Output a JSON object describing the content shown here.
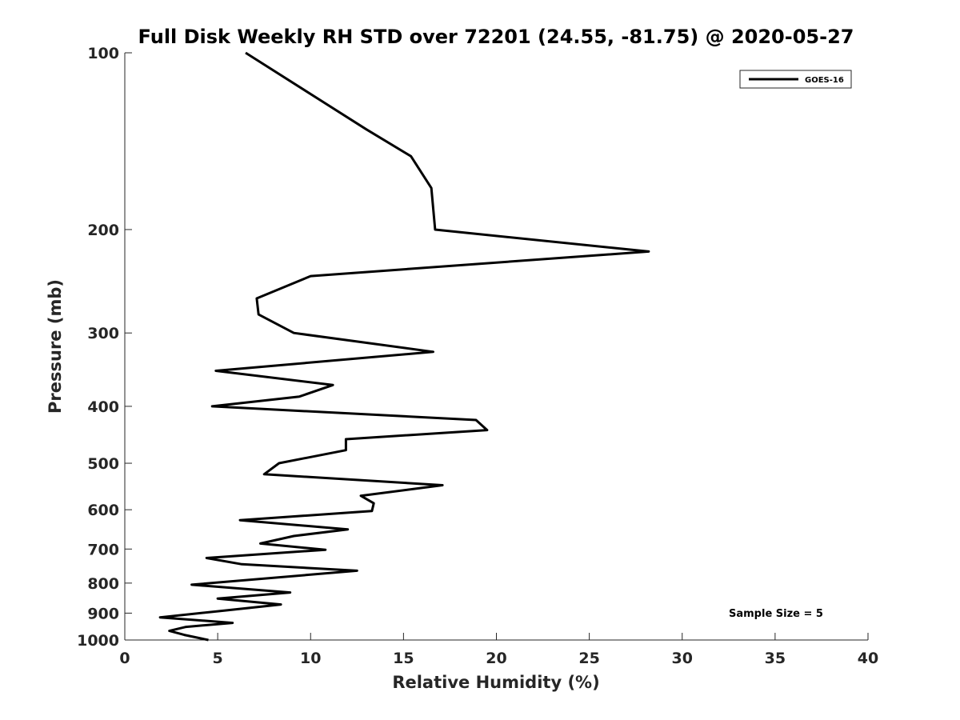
{
  "chart_data": {
    "type": "line",
    "title": "Full Disk Weekly RH STD over 72201 (24.55, -81.75) @ 2020-05-27",
    "xlabel": "Relative Humidity (%)",
    "ylabel": "Pressure (mb)",
    "xlim": [
      0,
      40
    ],
    "ylim": [
      100,
      1000
    ],
    "yscale": "log",
    "reverse_y": true,
    "xticks": [
      0,
      5,
      10,
      15,
      20,
      25,
      30,
      35,
      40
    ],
    "xtick_labels": [
      "0",
      "5",
      "10",
      "15",
      "20",
      "25",
      "30",
      "35",
      "40"
    ],
    "yticks": [
      100,
      200,
      300,
      400,
      500,
      600,
      700,
      800,
      900,
      1000
    ],
    "ytick_labels": [
      "100",
      "200",
      "300",
      "400",
      "500",
      "600",
      "700",
      "800",
      "900",
      "1000"
    ],
    "grid": false,
    "legend_position": "top-right",
    "annotation": "Sample Size = 5",
    "series": [
      {
        "name": "GOES-16",
        "color": "#000000",
        "points": [
          [
            6.5,
            100
          ],
          [
            13.0,
            135
          ],
          [
            15.4,
            150
          ],
          [
            16.5,
            170
          ],
          [
            16.7,
            200
          ],
          [
            28.2,
            218
          ],
          [
            10.0,
            240
          ],
          [
            7.1,
            262
          ],
          [
            7.2,
            279
          ],
          [
            9.1,
            300
          ],
          [
            16.6,
            323
          ],
          [
            4.9,
            348
          ],
          [
            11.2,
            368
          ],
          [
            9.4,
            385
          ],
          [
            4.7,
            400
          ],
          [
            18.9,
            422
          ],
          [
            19.5,
            439
          ],
          [
            11.9,
            455
          ],
          [
            11.9,
            475
          ],
          [
            8.3,
            500
          ],
          [
            7.5,
            522
          ],
          [
            17.1,
            545
          ],
          [
            12.7,
            568
          ],
          [
            13.4,
            585
          ],
          [
            13.3,
            603
          ],
          [
            6.2,
            625
          ],
          [
            12.0,
            648
          ],
          [
            9.1,
            665
          ],
          [
            7.3,
            685
          ],
          [
            10.8,
            702
          ],
          [
            4.4,
            725
          ],
          [
            6.3,
            743
          ],
          [
            12.5,
            762
          ],
          [
            3.6,
            805
          ],
          [
            8.9,
            830
          ],
          [
            5.0,
            850
          ],
          [
            8.4,
            870
          ],
          [
            5.5,
            890
          ],
          [
            1.9,
            915
          ],
          [
            5.8,
            935
          ],
          [
            3.3,
            950
          ],
          [
            2.4,
            965
          ],
          [
            3.2,
            980
          ],
          [
            4.5,
            1000
          ]
        ]
      }
    ]
  }
}
